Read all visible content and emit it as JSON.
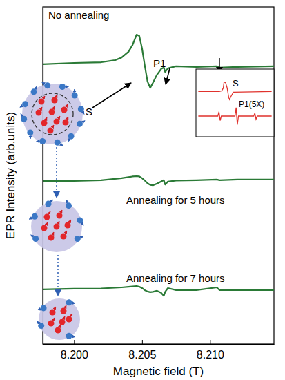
{
  "chart_data": [
    {
      "type": "line",
      "x_label": "Magnetic field (T)",
      "y_label": "EPR Intensity (arb.units)",
      "x": [
        8.1977,
        8.2,
        8.202,
        8.203,
        8.2035,
        8.204,
        8.2043,
        8.2046,
        8.2048,
        8.205,
        8.2052,
        8.2054,
        8.2056,
        8.2058,
        8.2061,
        8.2064,
        8.2066,
        8.2067,
        8.2069,
        8.2075,
        8.209,
        8.2105,
        8.2107,
        8.212,
        8.2147
      ],
      "series": [
        {
          "name": "No annealing",
          "color": "#2a7a36",
          "values": [
            83.0,
            83.4,
            83.6,
            84.2,
            85.0,
            86.7,
            88.7,
            91.8,
            91.4,
            87.7,
            82.6,
            77.9,
            76.0,
            77.5,
            79.9,
            81.6,
            82.0,
            80.7,
            81.8,
            82.4,
            82.2,
            82.4,
            82.0,
            82.2,
            82.4
          ]
        },
        {
          "name": "Annealing for 5 hours",
          "color": "#2a7a36",
          "values": [
            48.4,
            48.4,
            48.6,
            49.0,
            49.2,
            49.5,
            49.7,
            49.8,
            49.7,
            49.2,
            48.5,
            47.7,
            47.2,
            47.1,
            47.6,
            48.2,
            48.6,
            47.3,
            48.2,
            48.5,
            48.6,
            48.8,
            48.6,
            48.8,
            48.8
          ]
        },
        {
          "name": "Annealing for 7 hours",
          "color": "#2a7a36",
          "values": [
            16.2,
            16.4,
            16.5,
            16.7,
            16.8,
            17.0,
            17.1,
            17.2,
            17.0,
            16.6,
            16.0,
            15.6,
            15.4,
            15.5,
            15.8,
            15.2,
            14.3,
            15.5,
            16.6,
            16.0,
            16.0,
            16.8,
            16.0,
            16.0,
            16.0
          ]
        }
      ],
      "xlim": [
        8.1977,
        8.2147
      ],
      "ylim": [
        0,
        100
      ],
      "xticks": [
        {
          "value": 8.2,
          "label": "8.200"
        },
        {
          "value": 8.205,
          "label": "8.205"
        },
        {
          "value": 8.21,
          "label": "8.210"
        }
      ],
      "tick_labels": "x",
      "annotations": [
        {
          "text": "S"
        },
        {
          "text": "P1"
        }
      ]
    },
    {
      "type": "line",
      "xlim": [
        0,
        100
      ],
      "ylim": [
        0,
        100
      ],
      "tick_labels": false,
      "series": [
        {
          "name": "S",
          "color": "#e0322d",
          "x": [
            3,
            30,
            33,
            35,
            36,
            38,
            40,
            42,
            43,
            45,
            48,
            97
          ],
          "values": [
            67,
            67,
            68,
            72,
            81,
            80,
            72,
            58,
            55,
            60,
            66,
            67
          ]
        },
        {
          "name": "P1(5X)",
          "color": "#e0322d",
          "x": [
            3,
            28,
            29.5,
            31,
            32.5,
            50,
            51.5,
            53,
            54.5,
            74,
            75.5,
            77,
            78.5,
            97
          ],
          "values": [
            30.6,
            30.6,
            37,
            24,
            30.6,
            30.6,
            43,
            18,
            30.6,
            30.6,
            35,
            26,
            30.6,
            30.6
          ]
        }
      ]
    }
  ]
}
